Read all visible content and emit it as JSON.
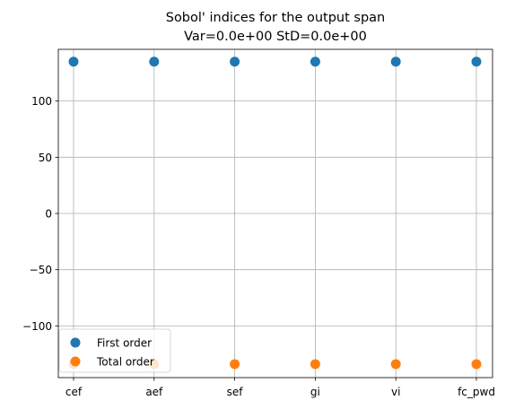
{
  "chart_data": {
    "type": "scatter",
    "title_line1": "Sobol' indices for the output span",
    "title_line2": "Var=0.0e+00    StD=0.0e+00",
    "xlabel": "",
    "ylabel": "",
    "categories": [
      "cef",
      "aef",
      "sef",
      "gi",
      "vi",
      "fc_pwd"
    ],
    "series": [
      {
        "name": "First order",
        "color": "#1f77b4",
        "values": [
          135,
          135,
          135,
          135,
          135,
          135
        ]
      },
      {
        "name": "Total order",
        "color": "#ff7f0e",
        "values": [
          -134,
          -134,
          -134,
          -134,
          -134,
          -134
        ]
      }
    ],
    "ylim": [
      -146,
      146
    ],
    "yticks": [
      100,
      50,
      0,
      -50,
      -100
    ],
    "ytick_labels": [
      "100",
      "50",
      "0",
      "−50",
      "−100"
    ],
    "grid": true,
    "legend_position": "lower-left"
  }
}
